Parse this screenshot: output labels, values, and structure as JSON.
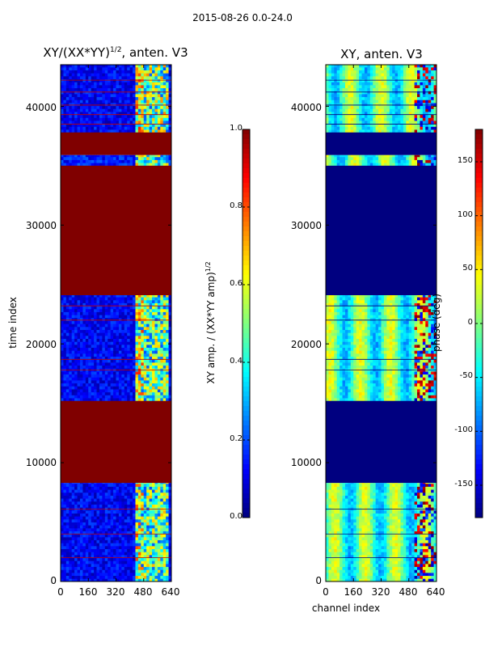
{
  "figure": {
    "suptitle": "2015-08-26 0.0-24.0"
  },
  "chart_data": [
    {
      "type": "heatmap",
      "title": "XY/(XX*YY)",
      "title_exponent": "1/2",
      "title_suffix": ", anten. V3",
      "xlabel": "",
      "ylabel": "time index",
      "xlim": [
        0,
        640
      ],
      "ylim": [
        0,
        43500
      ],
      "xticks": [
        "0",
        "160",
        "320",
        "480",
        "640"
      ],
      "yticks": [
        "0",
        "10000",
        "20000",
        "30000",
        "40000"
      ],
      "colormap": "jet",
      "colorbar": {
        "label": "XY amp. / (XX*YY amp)",
        "label_exponent": "1/2",
        "range": [
          0.0,
          1.0
        ],
        "ticks": [
          "0.0",
          "0.2",
          "0.4",
          "0.6",
          "0.8",
          "1.0"
        ]
      },
      "flagged_time_ranges": [
        [
          8300,
          15200
        ],
        [
          24100,
          35000
        ],
        [
          35900,
          37800
        ]
      ],
      "bands": [
        {
          "t0": 0,
          "t1": 8300,
          "base": 0.12,
          "active": 0.5
        },
        {
          "t0": 15200,
          "t1": 24100,
          "base": 0.12,
          "active": 0.5
        },
        {
          "t0": 35000,
          "t1": 35900,
          "base": 0.15,
          "active": 0.5
        },
        {
          "t0": 37800,
          "t1": 43500,
          "base": 0.12,
          "active": 0.55
        }
      ]
    },
    {
      "type": "heatmap",
      "title": "XY, anten. V3",
      "xlabel": "channel index",
      "ylabel": "",
      "xlim": [
        0,
        640
      ],
      "ylim": [
        0,
        43500
      ],
      "xticks": [
        "0",
        "160",
        "320",
        "480",
        "640"
      ],
      "yticks": [
        "0",
        "10000",
        "20000",
        "30000",
        "40000"
      ],
      "colormap": "jet",
      "colorbar": {
        "label": "phase (deg)",
        "range": [
          -180,
          180
        ],
        "ticks": [
          "-150",
          "-100",
          "-50",
          "0",
          "50",
          "100",
          "150"
        ]
      },
      "flagged_time_ranges": [
        [
          8300,
          15200
        ],
        [
          24100,
          35000
        ],
        [
          35900,
          37800
        ]
      ],
      "bands": [
        {
          "t0": 0,
          "t1": 8300
        },
        {
          "t0": 15200,
          "t1": 24100
        },
        {
          "t0": 35000,
          "t1": 35900
        },
        {
          "t0": 37800,
          "t1": 43500
        }
      ]
    }
  ]
}
